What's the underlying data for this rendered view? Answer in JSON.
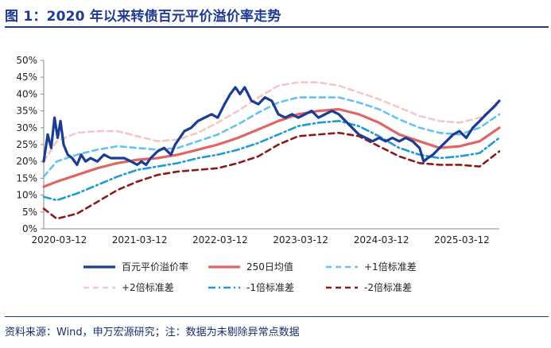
{
  "figure": {
    "title": "图 1：2020 年以来转债百元平价溢价率走势",
    "source": "资料来源：Wind，申万宏源研究；注：数据为未剔除异常点数据"
  },
  "chart_data": {
    "type": "line",
    "xlabel": "",
    "ylabel": "",
    "ylim": [
      0,
      50
    ],
    "y_ticks": [
      "0%",
      "5%",
      "10%",
      "15%",
      "20%",
      "25%",
      "30%",
      "35%",
      "40%",
      "45%",
      "50%"
    ],
    "x_ticks": [
      "2020-03-12",
      "2021-03-12",
      "2022-03-12",
      "2023-03-12",
      "2024-03-12",
      "2025-03-12"
    ],
    "x_start": "2020-01-02",
    "x_end": "2025-08-29",
    "legend_position": "bottom",
    "series": [
      {
        "name": "百元平价溢价率",
        "color": "#1B3C94",
        "style": "solid",
        "width": 3.2,
        "points": [
          [
            "2020-01-02",
            20
          ],
          [
            "2020-01-20",
            28
          ],
          [
            "2020-02-05",
            24
          ],
          [
            "2020-02-20",
            33
          ],
          [
            "2020-03-05",
            27
          ],
          [
            "2020-03-18",
            32
          ],
          [
            "2020-04-01",
            25
          ],
          [
            "2020-04-20",
            22
          ],
          [
            "2020-05-10",
            21
          ],
          [
            "2020-06-01",
            19
          ],
          [
            "2020-06-20",
            22
          ],
          [
            "2020-07-10",
            20
          ],
          [
            "2020-08-01",
            21
          ],
          [
            "2020-09-01",
            20
          ],
          [
            "2020-10-01",
            22
          ],
          [
            "2020-11-01",
            21
          ],
          [
            "2020-12-01",
            21
          ],
          [
            "2021-01-01",
            21
          ],
          [
            "2021-02-01",
            20
          ],
          [
            "2021-03-01",
            19
          ],
          [
            "2021-03-20",
            20
          ],
          [
            "2021-04-10",
            19
          ],
          [
            "2021-05-01",
            21
          ],
          [
            "2021-06-01",
            23
          ],
          [
            "2021-07-01",
            24
          ],
          [
            "2021-08-01",
            22
          ],
          [
            "2021-08-20",
            25
          ],
          [
            "2021-09-10",
            27
          ],
          [
            "2021-10-01",
            29
          ],
          [
            "2021-11-01",
            30
          ],
          [
            "2021-12-01",
            32
          ],
          [
            "2022-01-01",
            33
          ],
          [
            "2022-02-01",
            34
          ],
          [
            "2022-03-01",
            33
          ],
          [
            "2022-04-01",
            37
          ],
          [
            "2022-04-27",
            40
          ],
          [
            "2022-05-20",
            42
          ],
          [
            "2022-06-10",
            40
          ],
          [
            "2022-07-01",
            42
          ],
          [
            "2022-08-01",
            38
          ],
          [
            "2022-09-01",
            37
          ],
          [
            "2022-10-01",
            39
          ],
          [
            "2022-11-01",
            38
          ],
          [
            "2022-12-01",
            34
          ],
          [
            "2023-01-01",
            33
          ],
          [
            "2023-02-01",
            34
          ],
          [
            "2023-03-01",
            33
          ],
          [
            "2023-04-01",
            34
          ],
          [
            "2023-05-01",
            35
          ],
          [
            "2023-06-01",
            33
          ],
          [
            "2023-07-01",
            34
          ],
          [
            "2023-08-01",
            35
          ],
          [
            "2023-09-01",
            34
          ],
          [
            "2023-10-01",
            32
          ],
          [
            "2023-11-01",
            30
          ],
          [
            "2023-12-01",
            28
          ],
          [
            "2024-01-01",
            27
          ],
          [
            "2024-02-01",
            26
          ],
          [
            "2024-03-01",
            27
          ],
          [
            "2024-04-01",
            26
          ],
          [
            "2024-05-01",
            27
          ],
          [
            "2024-06-01",
            26
          ],
          [
            "2024-07-01",
            27
          ],
          [
            "2024-08-01",
            26
          ],
          [
            "2024-09-01",
            24
          ],
          [
            "2024-09-20",
            20
          ],
          [
            "2024-10-08",
            21
          ],
          [
            "2024-11-01",
            22
          ],
          [
            "2024-12-01",
            24
          ],
          [
            "2025-01-01",
            26
          ],
          [
            "2025-02-01",
            28
          ],
          [
            "2025-03-01",
            29
          ],
          [
            "2025-04-01",
            27
          ],
          [
            "2025-05-01",
            30
          ],
          [
            "2025-06-01",
            32
          ],
          [
            "2025-07-01",
            34
          ],
          [
            "2025-08-01",
            36
          ],
          [
            "2025-08-29",
            38
          ]
        ]
      },
      {
        "name": "250日均值",
        "color": "#E06666",
        "style": "solid",
        "width": 3.2,
        "points": [
          [
            "2020-01-02",
            12.5
          ],
          [
            "2020-03-01",
            14
          ],
          [
            "2020-06-01",
            16
          ],
          [
            "2020-09-01",
            18
          ],
          [
            "2020-12-01",
            19.5
          ],
          [
            "2021-03-01",
            20.5
          ],
          [
            "2021-06-01",
            21
          ],
          [
            "2021-09-01",
            22
          ],
          [
            "2021-12-01",
            23.5
          ],
          [
            "2022-03-01",
            25
          ],
          [
            "2022-06-01",
            27
          ],
          [
            "2022-09-01",
            29.5
          ],
          [
            "2022-12-01",
            32
          ],
          [
            "2023-03-01",
            34
          ],
          [
            "2023-06-01",
            35
          ],
          [
            "2023-09-01",
            35.5
          ],
          [
            "2023-12-01",
            34
          ],
          [
            "2024-03-01",
            31.5
          ],
          [
            "2024-06-01",
            28
          ],
          [
            "2024-09-01",
            26
          ],
          [
            "2024-12-01",
            24
          ],
          [
            "2025-03-01",
            24.5
          ],
          [
            "2025-06-01",
            26
          ],
          [
            "2025-08-29",
            30
          ]
        ]
      },
      {
        "name": "+1倍标准差",
        "color": "#63C3EE",
        "style": "dashed",
        "width": 2.6,
        "points": [
          [
            "2020-01-02",
            15.5
          ],
          [
            "2020-03-01",
            20
          ],
          [
            "2020-06-01",
            22
          ],
          [
            "2020-09-01",
            23.5
          ],
          [
            "2020-12-01",
            24.5
          ],
          [
            "2021-03-01",
            24
          ],
          [
            "2021-06-01",
            23.5
          ],
          [
            "2021-09-01",
            24
          ],
          [
            "2021-12-01",
            26
          ],
          [
            "2022-03-01",
            28
          ],
          [
            "2022-06-01",
            31
          ],
          [
            "2022-09-01",
            34.5
          ],
          [
            "2022-12-01",
            37.5
          ],
          [
            "2023-03-01",
            39
          ],
          [
            "2023-06-01",
            39
          ],
          [
            "2023-09-01",
            39
          ],
          [
            "2023-12-01",
            37.5
          ],
          [
            "2024-03-01",
            35.5
          ],
          [
            "2024-06-01",
            32.5
          ],
          [
            "2024-09-01",
            30
          ],
          [
            "2024-12-01",
            28.5
          ],
          [
            "2025-03-01",
            28
          ],
          [
            "2025-06-01",
            30
          ],
          [
            "2025-08-29",
            34
          ]
        ]
      },
      {
        "name": "+2倍标准差",
        "color": "#F6C6C6",
        "style": "dashed",
        "width": 2.6,
        "points": [
          [
            "2020-01-02",
            20
          ],
          [
            "2020-03-01",
            26
          ],
          [
            "2020-06-01",
            28.5
          ],
          [
            "2020-09-01",
            29
          ],
          [
            "2020-12-01",
            29
          ],
          [
            "2021-03-01",
            27.5
          ],
          [
            "2021-06-01",
            26
          ],
          [
            "2021-09-01",
            26.5
          ],
          [
            "2021-12-01",
            28.5
          ],
          [
            "2022-03-01",
            31.5
          ],
          [
            "2022-06-01",
            35
          ],
          [
            "2022-09-01",
            39
          ],
          [
            "2022-12-01",
            42.5
          ],
          [
            "2023-03-01",
            43.5
          ],
          [
            "2023-06-01",
            43.5
          ],
          [
            "2023-09-01",
            42.5
          ],
          [
            "2023-12-01",
            40.5
          ],
          [
            "2024-03-01",
            38.5
          ],
          [
            "2024-06-01",
            36
          ],
          [
            "2024-09-01",
            33.5
          ],
          [
            "2024-12-01",
            32
          ],
          [
            "2025-03-01",
            31.5
          ],
          [
            "2025-06-01",
            33
          ],
          [
            "2025-08-29",
            37
          ]
        ]
      },
      {
        "name": "-1倍标准差",
        "color": "#1F9BD4",
        "style": "dashdot",
        "width": 2.6,
        "points": [
          [
            "2020-01-02",
            9.5
          ],
          [
            "2020-03-01",
            8.5
          ],
          [
            "2020-06-01",
            10.5
          ],
          [
            "2020-09-01",
            13
          ],
          [
            "2020-12-01",
            15.5
          ],
          [
            "2021-03-01",
            17.5
          ],
          [
            "2021-06-01",
            18.5
          ],
          [
            "2021-09-01",
            19.5
          ],
          [
            "2021-12-01",
            21
          ],
          [
            "2022-03-01",
            22
          ],
          [
            "2022-06-01",
            23.5
          ],
          [
            "2022-09-01",
            25.5
          ],
          [
            "2022-12-01",
            28
          ],
          [
            "2023-03-01",
            30.5
          ],
          [
            "2023-06-01",
            31.5
          ],
          [
            "2023-09-01",
            32
          ],
          [
            "2023-12-01",
            30.5
          ],
          [
            "2024-03-01",
            27.5
          ],
          [
            "2024-06-01",
            24
          ],
          [
            "2024-09-01",
            22
          ],
          [
            "2024-12-01",
            21
          ],
          [
            "2025-03-01",
            21.5
          ],
          [
            "2025-06-01",
            22.5
          ],
          [
            "2025-08-29",
            27
          ]
        ]
      },
      {
        "name": "-2倍标准差",
        "color": "#8B1A1A",
        "style": "dashed",
        "width": 2.6,
        "points": [
          [
            "2020-01-02",
            6
          ],
          [
            "2020-03-01",
            3
          ],
          [
            "2020-06-01",
            4.5
          ],
          [
            "2020-09-01",
            8
          ],
          [
            "2020-12-01",
            11.5
          ],
          [
            "2021-03-01",
            14
          ],
          [
            "2021-06-01",
            16
          ],
          [
            "2021-09-01",
            17
          ],
          [
            "2021-12-01",
            17.5
          ],
          [
            "2022-03-01",
            18
          ],
          [
            "2022-06-01",
            19.5
          ],
          [
            "2022-09-01",
            21.5
          ],
          [
            "2022-12-01",
            25
          ],
          [
            "2023-03-01",
            27.5
          ],
          [
            "2023-06-01",
            28
          ],
          [
            "2023-09-01",
            28.5
          ],
          [
            "2023-12-01",
            27.5
          ],
          [
            "2024-03-01",
            24.5
          ],
          [
            "2024-06-01",
            21.5
          ],
          [
            "2024-09-01",
            19.5
          ],
          [
            "2024-12-01",
            19
          ],
          [
            "2025-03-01",
            19
          ],
          [
            "2025-06-01",
            18.5
          ],
          [
            "2025-08-29",
            23
          ]
        ]
      }
    ]
  }
}
